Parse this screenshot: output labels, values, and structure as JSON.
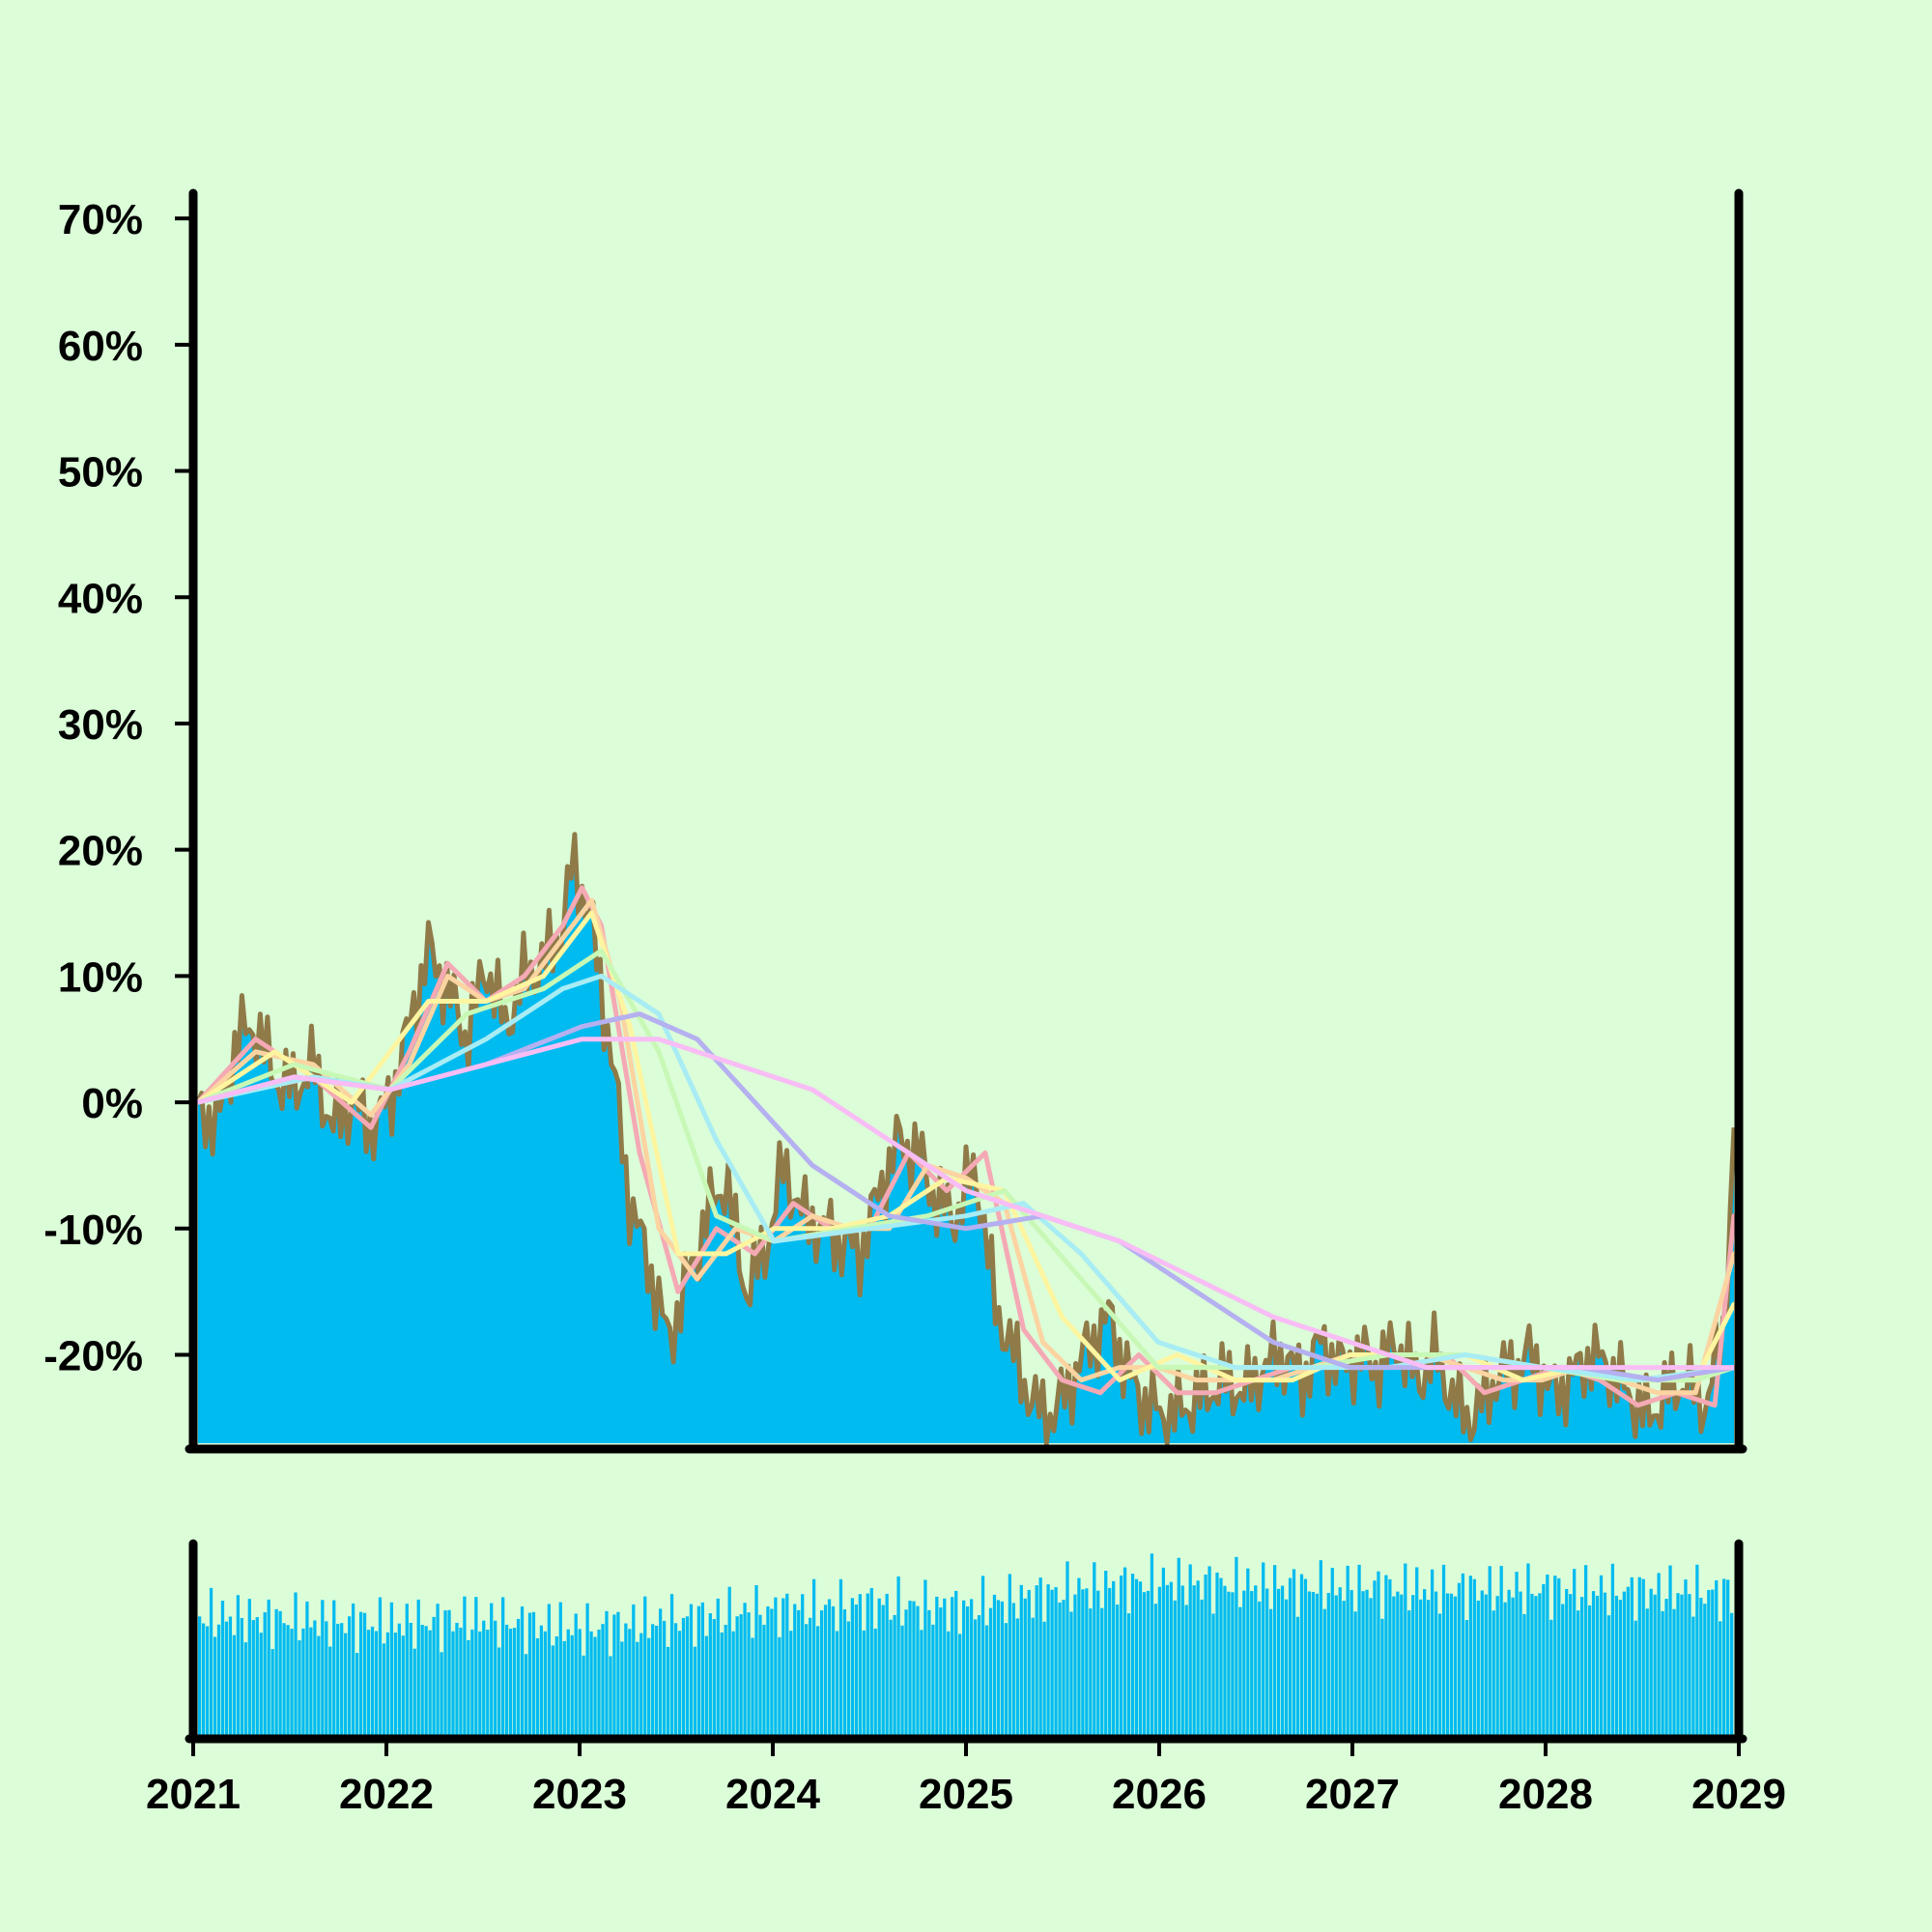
{
  "chart_data": {
    "type": "line",
    "background_color": "#dbfdd8",
    "main_panel": {
      "fill_color": "#00bbf0",
      "price_line_color": "#8f7a48",
      "ylim": [
        -27,
        72
      ],
      "y_ticks": [
        70,
        60,
        50,
        40,
        30,
        20,
        10,
        0,
        -10,
        -20
      ],
      "y_tick_labels": [
        "70%",
        "60%",
        "50%",
        "40%",
        "30%",
        "20%",
        "10%",
        "0%",
        "-10%",
        "-20%"
      ],
      "grid": false,
      "legend": "none",
      "price": {
        "x": [
          2021.0,
          2021.1,
          2021.2,
          2021.3,
          2021.4,
          2021.5,
          2021.6,
          2021.7,
          2021.8,
          2021.9,
          2022.0,
          2022.1,
          2022.2,
          2022.3,
          2022.4,
          2022.5,
          2022.6,
          2022.7,
          2022.8,
          2022.9,
          2022.95,
          2023.0,
          2023.05,
          2023.15,
          2023.25,
          2023.35,
          2023.45,
          2023.55,
          2023.65,
          2023.75,
          2023.85,
          2023.95,
          2024.05,
          2024.15,
          2024.25,
          2024.35,
          2024.45,
          2024.55,
          2024.65,
          2024.75,
          2024.85,
          2024.95,
          2025.05,
          2025.15,
          2025.25,
          2025.35,
          2025.45,
          2025.55,
          2025.65,
          2025.75,
          2025.85,
          2025.95,
          2026.05,
          2026.15,
          2026.25,
          2026.35,
          2026.45,
          2026.55,
          2026.65,
          2026.75,
          2026.85,
          2026.95,
          2027.05,
          2027.15,
          2027.25,
          2027.35,
          2027.45,
          2027.55,
          2027.65,
          2027.75,
          2027.85,
          2027.95,
          2028.05,
          2028.15,
          2028.25,
          2028.35,
          2028.45,
          2028.55,
          2028.65,
          2028.75,
          2028.85,
          2028.95,
          2029.0
        ],
        "y": [
          0,
          -2,
          5,
          6,
          2,
          1,
          3,
          -2,
          0,
          -2,
          0,
          6,
          12,
          9,
          5,
          11,
          6,
          10,
          11,
          14,
          19,
          17,
          14,
          4,
          -8,
          -13,
          -19,
          -14,
          -9,
          -6,
          -15,
          -12,
          -5,
          -9,
          -10,
          -11,
          -12,
          -7,
          -3,
          -4,
          -8,
          -9,
          -5,
          -16,
          -20,
          -24,
          -25,
          -22,
          -19,
          -17,
          -22,
          -24,
          -25,
          -24,
          -23,
          -22,
          -23,
          -21,
          -20,
          -22,
          -19,
          -21,
          -20,
          -21,
          -19,
          -22,
          -20,
          -24,
          -25,
          -22,
          -21,
          -20,
          -23,
          -22,
          -20,
          -21,
          -23,
          -25,
          -23,
          -22,
          -24,
          -18,
          -2
        ]
      },
      "moving_averages": [
        {
          "color": "#f4a9b4",
          "x": [
            2021.0,
            2021.3,
            2021.6,
            2021.9,
            2022.1,
            2022.3,
            2022.5,
            2022.7,
            2022.9,
            2023.0,
            2023.1,
            2023.3,
            2023.5,
            2023.7,
            2023.9,
            2024.1,
            2024.3,
            2024.5,
            2024.7,
            2024.9,
            2025.1,
            2025.3,
            2025.5,
            2025.7,
            2025.9,
            2026.1,
            2026.3,
            2026.5,
            2026.7,
            2026.9,
            2027.1,
            2027.3,
            2027.5,
            2027.7,
            2027.9,
            2028.1,
            2028.3,
            2028.5,
            2028.7,
            2028.9,
            2029.0
          ],
          "y": [
            0,
            5,
            2,
            -2,
            4,
            11,
            8,
            10,
            14,
            17,
            14,
            -4,
            -15,
            -10,
            -12,
            -8,
            -10,
            -10,
            -4,
            -7,
            -4,
            -18,
            -22,
            -23,
            -20,
            -23,
            -23,
            -22,
            -21,
            -21,
            -20,
            -20,
            -20,
            -23,
            -22,
            -21,
            -22,
            -24,
            -23,
            -24,
            -9
          ]
        },
        {
          "color": "#fbd4a2",
          "x": [
            2021.0,
            2021.3,
            2021.6,
            2021.9,
            2022.1,
            2022.3,
            2022.5,
            2022.7,
            2022.9,
            2023.05,
            2023.2,
            2023.4,
            2023.6,
            2023.8,
            2024.0,
            2024.2,
            2024.4,
            2024.6,
            2024.8,
            2025.0,
            2025.2,
            2025.4,
            2025.6,
            2025.8,
            2026.0,
            2026.2,
            2026.4,
            2026.6,
            2026.8,
            2027.0,
            2027.2,
            2027.4,
            2027.6,
            2027.8,
            2028.0,
            2028.2,
            2028.4,
            2028.6,
            2028.8,
            2029.0
          ],
          "y": [
            0,
            4,
            3,
            -1,
            3,
            10,
            8,
            9,
            13,
            16,
            8,
            -10,
            -14,
            -10,
            -11,
            -9,
            -10,
            -10,
            -5,
            -6,
            -8,
            -19,
            -22,
            -21,
            -21,
            -22,
            -22,
            -22,
            -21,
            -20,
            -20,
            -20,
            -21,
            -22,
            -22,
            -21,
            -22,
            -23,
            -23,
            -12
          ]
        },
        {
          "color": "#fdf5a0",
          "x": [
            2021.0,
            2021.4,
            2021.8,
            2022.2,
            2022.5,
            2022.8,
            2023.05,
            2023.25,
            2023.5,
            2023.75,
            2024.0,
            2024.3,
            2024.6,
            2024.9,
            2025.2,
            2025.5,
            2025.8,
            2026.1,
            2026.4,
            2026.7,
            2027.0,
            2027.3,
            2027.6,
            2027.9,
            2028.2,
            2028.5,
            2028.8,
            2029.0
          ],
          "y": [
            0,
            4,
            0,
            8,
            8,
            10,
            15,
            6,
            -12,
            -12,
            -10,
            -10,
            -9,
            -6,
            -7,
            -17,
            -22,
            -20,
            -22,
            -22,
            -20,
            -20,
            -20,
            -22,
            -21,
            -22,
            -22,
            -16
          ]
        },
        {
          "color": "#c8f8b6",
          "x": [
            2021.0,
            2021.5,
            2022.0,
            2022.4,
            2022.8,
            2023.1,
            2023.4,
            2023.7,
            2024.0,
            2024.4,
            2024.8,
            2025.2,
            2025.6,
            2026.0,
            2026.4,
            2026.8,
            2027.2,
            2027.6,
            2028.0,
            2028.4,
            2028.8,
            2029.0
          ],
          "y": [
            0,
            3,
            1,
            7,
            9,
            12,
            4,
            -9,
            -11,
            -10,
            -9,
            -7,
            -14,
            -21,
            -21,
            -21,
            -20,
            -20,
            -21,
            -22,
            -22,
            -21
          ]
        },
        {
          "color": "#a8ecf4",
          "x": [
            2021.0,
            2021.6,
            2022.0,
            2022.5,
            2022.9,
            2023.1,
            2023.4,
            2023.7,
            2024.0,
            2024.5,
            2025.0,
            2025.3,
            2025.6,
            2026.0,
            2026.4,
            2026.8,
            2027.2,
            2027.6,
            2028.0,
            2028.5,
            2029.0
          ],
          "y": [
            0,
            2,
            1,
            5,
            9,
            10,
            7,
            -3,
            -11,
            -10,
            -9,
            -8,
            -12,
            -19,
            -21,
            -21,
            -21,
            -20,
            -21,
            -22,
            -21
          ]
        },
        {
          "color": "#b5b0f0",
          "x": [
            2021.0,
            2021.5,
            2022.0,
            2022.5,
            2023.0,
            2023.3,
            2023.6,
            2023.9,
            2024.2,
            2024.6,
            2025.0,
            2025.4,
            2025.8,
            2026.2,
            2026.6,
            2027.0,
            2027.4,
            2027.8,
            2028.2,
            2028.6,
            2029.0
          ],
          "y": [
            0,
            2,
            1,
            3,
            6,
            7,
            5,
            0,
            -5,
            -9,
            -10,
            -9,
            -11,
            -15,
            -19,
            -21,
            -21,
            -21,
            -21,
            -22,
            -21
          ]
        },
        {
          "color": "#f8bdf5",
          "x": [
            2021.0,
            2021.5,
            2022.0,
            2022.5,
            2023.0,
            2023.4,
            2023.8,
            2024.2,
            2024.6,
            2025.0,
            2025.4,
            2025.8,
            2026.2,
            2026.6,
            2027.0,
            2027.4,
            2027.8,
            2028.2,
            2028.6,
            2029.0
          ],
          "y": [
            0,
            2,
            1,
            3,
            5,
            5,
            3,
            1,
            -3,
            -7,
            -9,
            -11,
            -14,
            -17,
            -19,
            -21,
            -21,
            -21,
            -21,
            -21
          ]
        }
      ]
    },
    "volume_panel": {
      "fill_color": "#00bbf0",
      "ylim": [
        0,
        1
      ],
      "bar_count": 400,
      "values_profile": {
        "x": [
          2021.0,
          2021.5,
          2022.0,
          2022.5,
          2023.0,
          2023.5,
          2024.0,
          2024.5,
          2025.0,
          2025.5,
          2026.0,
          2026.5,
          2027.0,
          2027.5,
          2028.0,
          2028.5,
          2029.0
        ],
        "y": [
          0.62,
          0.6,
          0.58,
          0.6,
          0.55,
          0.6,
          0.65,
          0.68,
          0.66,
          0.75,
          0.8,
          0.78,
          0.77,
          0.76,
          0.76,
          0.75,
          0.74
        ]
      }
    },
    "x_axis": {
      "xlim": [
        2021,
        2029
      ],
      "ticks": [
        2021,
        2022,
        2023,
        2024,
        2025,
        2026,
        2027,
        2028,
        2029
      ],
      "tick_labels": [
        "2021",
        "2022",
        "2023",
        "2024",
        "2025",
        "2026",
        "2027",
        "2028",
        "2029"
      ]
    }
  }
}
